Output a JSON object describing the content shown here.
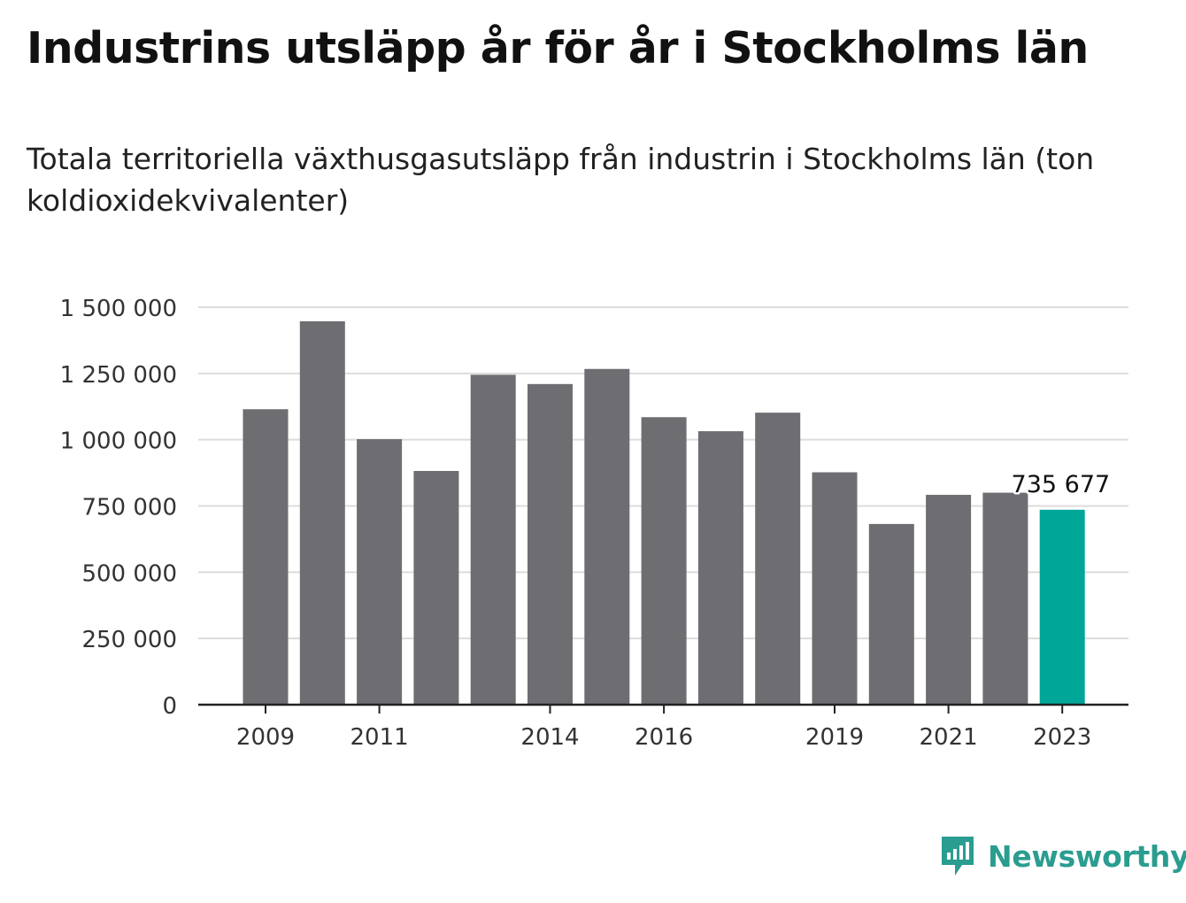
{
  "header": {
    "title": "Industrins utsläpp år för år i Stockholms län",
    "subtitle": "Totala territoriella växthusgasutsläpp från industrin i Stockholms län (ton koldioxidekvivalenter)"
  },
  "brand": {
    "name": "Newsworthy",
    "icon": "newsworthy-logo-icon"
  },
  "colors": {
    "bar": "#6e6d72",
    "highlight": "#00a698",
    "grid": "#dcdcdc",
    "axis": "#222222",
    "brand": "#2a9d90"
  },
  "chart_data": {
    "type": "bar",
    "categories": [
      "2009",
      "2010",
      "2011",
      "2012",
      "2013",
      "2014",
      "2015",
      "2016",
      "2017",
      "2018",
      "2019",
      "2020",
      "2021",
      "2022",
      "2023"
    ],
    "values": [
      1115000,
      1447000,
      1002000,
      882000,
      1245000,
      1210000,
      1267000,
      1085000,
      1032000,
      1102000,
      877000,
      682000,
      792000,
      800000,
      735677
    ],
    "highlight_index": 14,
    "annotation": {
      "category": "2023",
      "text": "735 677"
    },
    "x_tick_labels": [
      "2009",
      "2011",
      "2014",
      "2016",
      "2019",
      "2021",
      "2023"
    ],
    "y_ticks": [
      0,
      250000,
      500000,
      750000,
      1000000,
      1250000,
      1500000
    ],
    "y_tick_labels": [
      "0",
      "250 000",
      "500 000",
      "750 000",
      "1 000 000",
      "1 250 000",
      "1 500 000"
    ],
    "ylim": [
      0,
      1500000
    ],
    "grid": true,
    "legend": "none",
    "xlabel": "",
    "ylabel": ""
  }
}
